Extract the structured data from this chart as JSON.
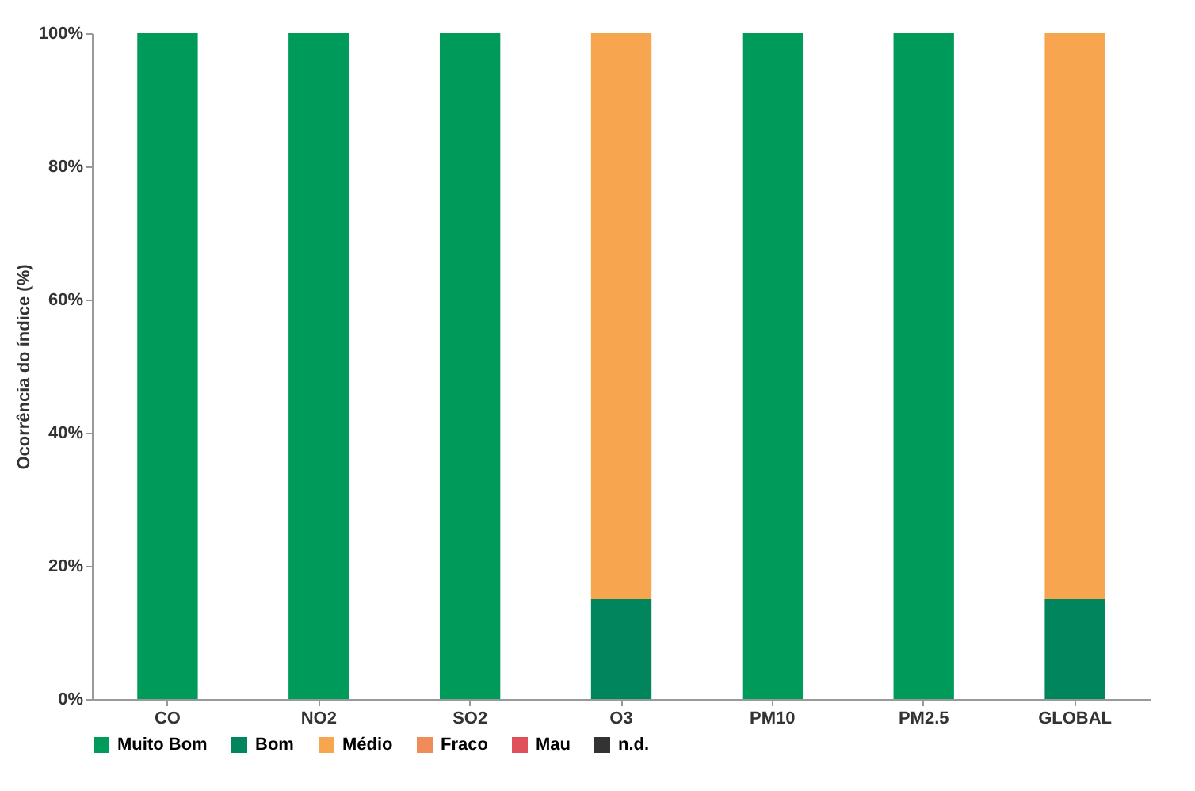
{
  "chart_data": {
    "type": "bar",
    "stacked": true,
    "ylabel": "Ocorrência do índice (%)",
    "categories": [
      "CO",
      "NO2",
      "SO2",
      "O3",
      "PM10",
      "PM2.5",
      "GLOBAL"
    ],
    "series": [
      {
        "name": "Muito Bom",
        "color": "#009a5a",
        "values": [
          100,
          100,
          100,
          0,
          100,
          100,
          0
        ]
      },
      {
        "name": "Bom",
        "color": "#00855c",
        "values": [
          0,
          0,
          0,
          15,
          0,
          0,
          15
        ]
      },
      {
        "name": "Médio",
        "color": "#f7a54f",
        "values": [
          0,
          0,
          0,
          85,
          0,
          0,
          85
        ]
      },
      {
        "name": "Fraco",
        "color": "#f08c5a",
        "values": [
          0,
          0,
          0,
          0,
          0,
          0,
          0
        ]
      },
      {
        "name": "Mau",
        "color": "#e0505a",
        "values": [
          0,
          0,
          0,
          0,
          0,
          0,
          0
        ]
      },
      {
        "name": "n.d.",
        "color": "#333333",
        "values": [
          0,
          0,
          0,
          0,
          0,
          0,
          0
        ]
      }
    ],
    "ylim": [
      0,
      100
    ],
    "yticks": [
      {
        "value": 0,
        "label": "0%"
      },
      {
        "value": 20,
        "label": "20%"
      },
      {
        "value": 40,
        "label": "40%"
      },
      {
        "value": 60,
        "label": "60%"
      },
      {
        "value": 80,
        "label": "80%"
      },
      {
        "value": 100,
        "label": "100%"
      }
    ],
    "grid": false,
    "legend": "bottom"
  }
}
